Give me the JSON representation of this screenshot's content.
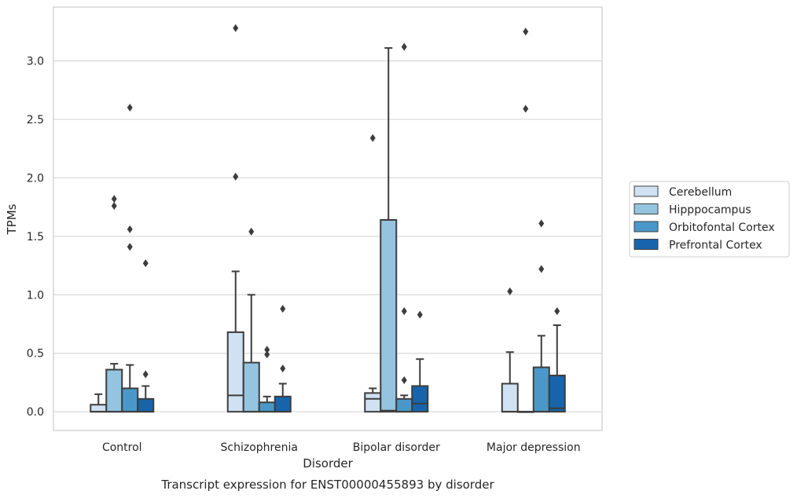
{
  "chart_data": {
    "type": "box",
    "title": "",
    "caption": "Transcript expression for ENST00000455893 by disorder",
    "xlabel": "Disorder",
    "ylabel": "TPMs",
    "ylim": [
      -0.16,
      3.46
    ],
    "yticks": [
      0.0,
      0.5,
      1.0,
      1.5,
      2.0,
      2.5,
      3.0
    ],
    "ytick_labels": [
      "0.0",
      "0.5",
      "1.0",
      "1.5",
      "2.0",
      "2.5",
      "3.0"
    ],
    "grid": "horizontal",
    "legend_position": "right",
    "categories": [
      "Control",
      "Schizophrenia",
      "Bipolar disorder",
      "Major depression"
    ],
    "series": [
      {
        "name": "Cerebellum",
        "color": "#d0e1f2",
        "boxes": [
          {
            "q1": 0.0,
            "median": 0.0,
            "q3": 0.06,
            "whisker_low": 0.0,
            "whisker_high": 0.15,
            "outliers": []
          },
          {
            "q1": 0.0,
            "median": 0.14,
            "q3": 0.68,
            "whisker_low": 0.0,
            "whisker_high": 1.2,
            "outliers": [
              2.01,
              3.28
            ]
          },
          {
            "q1": 0.0,
            "median": 0.11,
            "q3": 0.16,
            "whisker_low": 0.0,
            "whisker_high": 0.2,
            "outliers": [
              2.34
            ]
          },
          {
            "q1": 0.0,
            "median": 0.0,
            "q3": 0.24,
            "whisker_low": 0.0,
            "whisker_high": 0.51,
            "outliers": [
              1.03
            ]
          }
        ]
      },
      {
        "name": "Hipppocampus",
        "color": "#94c4df",
        "boxes": [
          {
            "q1": 0.0,
            "median": 0.0,
            "q3": 0.36,
            "whisker_low": 0.0,
            "whisker_high": 0.41,
            "outliers": [
              1.76,
              1.82
            ]
          },
          {
            "q1": 0.0,
            "median": 0.0,
            "q3": 0.42,
            "whisker_low": 0.0,
            "whisker_high": 1.0,
            "outliers": [
              1.54
            ]
          },
          {
            "q1": 0.0,
            "median": 0.01,
            "q3": 1.64,
            "whisker_low": 0.0,
            "whisker_high": 3.11,
            "outliers": []
          },
          {
            "q1": 0.0,
            "median": 0.0,
            "q3": 0.0,
            "whisker_low": 0.0,
            "whisker_high": 0.0,
            "outliers": [
              2.59,
              3.25
            ]
          }
        ]
      },
      {
        "name": "Orbitofontal Cortex",
        "color": "#4a98c9",
        "boxes": [
          {
            "q1": 0.0,
            "median": 0.0,
            "q3": 0.2,
            "whisker_low": 0.0,
            "whisker_high": 0.4,
            "outliers": [
              1.41,
              1.56,
              2.6
            ]
          },
          {
            "q1": 0.0,
            "median": 0.0,
            "q3": 0.08,
            "whisker_low": 0.0,
            "whisker_high": 0.13,
            "outliers": [
              0.49,
              0.53
            ]
          },
          {
            "q1": 0.0,
            "median": 0.0,
            "q3": 0.11,
            "whisker_low": 0.0,
            "whisker_high": 0.14,
            "outliers": [
              0.27,
              0.86,
              3.12
            ]
          },
          {
            "q1": 0.0,
            "median": 0.0,
            "q3": 0.38,
            "whisker_low": 0.0,
            "whisker_high": 0.65,
            "outliers": [
              1.22,
              1.61
            ]
          }
        ]
      },
      {
        "name": "Prefrontal Cortex",
        "color": "#1764ab",
        "boxes": [
          {
            "q1": 0.0,
            "median": 0.0,
            "q3": 0.11,
            "whisker_low": 0.0,
            "whisker_high": 0.22,
            "outliers": [
              0.32,
              1.27
            ]
          },
          {
            "q1": 0.0,
            "median": 0.0,
            "q3": 0.13,
            "whisker_low": 0.0,
            "whisker_high": 0.24,
            "outliers": [
              0.37,
              0.88
            ]
          },
          {
            "q1": 0.0,
            "median": 0.07,
            "q3": 0.22,
            "whisker_low": 0.0,
            "whisker_high": 0.45,
            "outliers": [
              0.83
            ]
          },
          {
            "q1": 0.0,
            "median": 0.03,
            "q3": 0.31,
            "whisker_low": 0.0,
            "whisker_high": 0.74,
            "outliers": [
              0.86
            ]
          }
        ]
      }
    ]
  }
}
